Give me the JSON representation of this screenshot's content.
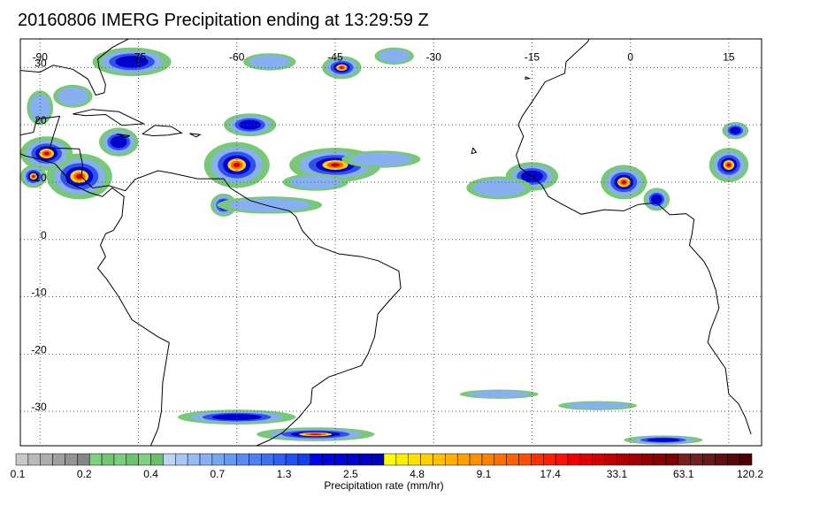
{
  "title": "20160806 IMERG Precipitation ending at 13:29:59 Z",
  "map": {
    "lon_range": [
      -93,
      20
    ],
    "lat_range": [
      -36,
      35
    ],
    "lon_ticks": [
      -90,
      -75,
      -60,
      -45,
      -30,
      -15,
      0,
      15
    ],
    "lat_ticks": [
      30,
      20,
      10,
      0,
      -10,
      -20,
      -30
    ],
    "lon_tick_labels": [
      "-90",
      "-75",
      "-60",
      "-45",
      "-30",
      "-15",
      "0",
      "15"
    ],
    "lat_tick_labels": [
      "30",
      "20",
      "10",
      "0",
      "-10",
      "-20",
      "-30"
    ],
    "gridlines": "dotted"
  },
  "colorbar": {
    "title": "Precipitation rate (mm/hr)",
    "labels": [
      "0.1",
      "0.2",
      "0.4",
      "0.7",
      "1.3",
      "2.5",
      "4.8",
      "9.1",
      "17.4",
      "33.1",
      "63.1",
      "120.2"
    ],
    "colors": [
      "#c8c8c8",
      "#bababa",
      "#adadad",
      "#a0a0a0",
      "#939393",
      "#868686",
      "#7fd07f",
      "#72c872",
      "#78d078",
      "#6cc46c",
      "#80d080",
      "#68c068",
      "#c0d4f4",
      "#a8c8f4",
      "#98bcf0",
      "#88b0f0",
      "#78a4f0",
      "#6898f0",
      "#5a8cf0",
      "#4e80f0",
      "#4070f0",
      "#3060f0",
      "#2050f0",
      "#1040f0",
      "#0000f0",
      "#0000e0",
      "#0000d8",
      "#0000d0",
      "#0000c8",
      "#0000c0",
      "#ffff00",
      "#ffee00",
      "#ffe000",
      "#ffd000",
      "#ffc000",
      "#ffb000",
      "#ffa000",
      "#ff9000",
      "#ff8000",
      "#ff7000",
      "#ff6000",
      "#ff5000",
      "#ff3000",
      "#ff2000",
      "#ff1000",
      "#f00000",
      "#e00000",
      "#d00000",
      "#c00000",
      "#b00000",
      "#a00000",
      "#900000",
      "#880000",
      "#800000",
      "#782020",
      "#702020",
      "#681818",
      "#601010",
      "#580808",
      "#500000"
    ]
  },
  "precip_features": [
    {
      "lon": -84,
      "lat": 11,
      "rx": 5,
      "ry": 4,
      "peak": 3
    },
    {
      "lon": -89,
      "lat": 15,
      "rx": 4,
      "ry": 3,
      "peak": 3
    },
    {
      "lon": -78,
      "lat": 17,
      "rx": 3,
      "ry": 2.5,
      "peak": 2
    },
    {
      "lon": -76,
      "lat": 31,
      "rx": 6,
      "ry": 2.5,
      "peak": 2
    },
    {
      "lon": -60,
      "lat": 13,
      "rx": 5,
      "ry": 4,
      "peak": 3
    },
    {
      "lon": -58,
      "lat": 20,
      "rx": 4,
      "ry": 2,
      "peak": 2
    },
    {
      "lon": -62,
      "lat": 6,
      "rx": 2,
      "ry": 2,
      "peak": 2
    },
    {
      "lon": -45,
      "lat": 13,
      "rx": 7,
      "ry": 3,
      "peak": 3
    },
    {
      "lon": -48,
      "lat": 10,
      "rx": 5,
      "ry": 1.5,
      "peak": 1
    },
    {
      "lon": -44,
      "lat": 30,
      "rx": 3,
      "ry": 2,
      "peak": 3
    },
    {
      "lon": -55,
      "lat": 31,
      "rx": 4,
      "ry": 1.5,
      "peak": 1
    },
    {
      "lon": -36,
      "lat": 32,
      "rx": 3,
      "ry": 1.5,
      "peak": 1
    },
    {
      "lon": -15,
      "lat": 11,
      "rx": 4,
      "ry": 2.5,
      "peak": 2
    },
    {
      "lon": -20,
      "lat": 9,
      "rx": 5,
      "ry": 2,
      "peak": 1
    },
    {
      "lon": -1,
      "lat": 10,
      "rx": 3.5,
      "ry": 3,
      "peak": 3
    },
    {
      "lon": 4,
      "lat": 7,
      "rx": 2,
      "ry": 2,
      "peak": 2
    },
    {
      "lon": 15,
      "lat": 13,
      "rx": 3,
      "ry": 3,
      "peak": 3
    },
    {
      "lon": 16,
      "lat": 19,
      "rx": 2,
      "ry": 1.5,
      "peak": 2
    },
    {
      "lon": -91,
      "lat": 11,
      "rx": 2,
      "ry": 2,
      "peak": 3
    },
    {
      "lon": -90,
      "lat": 23,
      "rx": 2,
      "ry": 3,
      "peak": 1
    },
    {
      "lon": -85,
      "lat": 25,
      "rx": 3,
      "ry": 2,
      "peak": 1
    },
    {
      "lon": -55,
      "lat": 6,
      "rx": 8,
      "ry": 1.5,
      "peak": 1
    },
    {
      "lon": -38,
      "lat": 14,
      "rx": 6,
      "ry": 1.5,
      "peak": 1
    },
    {
      "lon": -60,
      "lat": -31,
      "rx": 9,
      "ry": 1.3,
      "peak": 2
    },
    {
      "lon": -48,
      "lat": -34,
      "rx": 9,
      "ry": 1.2,
      "peak": 3
    },
    {
      "lon": -20,
      "lat": -27,
      "rx": 6,
      "ry": 0.8,
      "peak": 1
    },
    {
      "lon": -5,
      "lat": -29,
      "rx": 6,
      "ry": 0.8,
      "peak": 1
    },
    {
      "lon": 5,
      "lat": -35,
      "rx": 6,
      "ry": 0.8,
      "peak": 2
    }
  ]
}
